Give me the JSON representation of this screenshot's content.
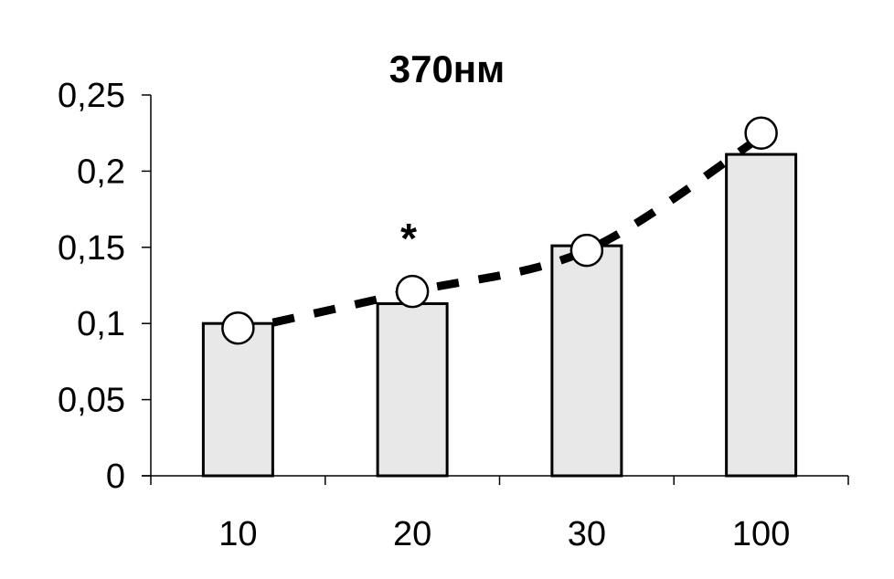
{
  "chart_data": {
    "type": "bar",
    "title": "370нм",
    "xlabel": "",
    "ylabel": "",
    "categories": [
      "10",
      "20",
      "30",
      "100"
    ],
    "series": [
      {
        "kind": "bar",
        "values": [
          0.1,
          0.113,
          0.151,
          0.211
        ]
      },
      {
        "kind": "scatter",
        "values": [
          0.097,
          0.121,
          0.148,
          0.225
        ]
      }
    ],
    "trendline": {
      "style": "dashed",
      "shape": "curve",
      "from_category": 0,
      "to_category": 3
    },
    "annotations": [
      {
        "text": "*",
        "category": "20",
        "y": 0.15
      }
    ],
    "yticks": [
      "0",
      "0,05",
      "0,1",
      "0,15",
      "0,2",
      "0,25"
    ],
    "ytick_values": [
      0,
      0.05,
      0.1,
      0.15,
      0.2,
      0.25
    ],
    "ylim": [
      0,
      0.25
    ],
    "grid": false,
    "legend": "none",
    "colors": {
      "bar_fill": "#e8e8e8",
      "bar_stroke": "#000000",
      "marker_fill": "#ffffff",
      "marker_stroke": "#000000",
      "trend": "#000000",
      "axis": "#000000"
    }
  }
}
